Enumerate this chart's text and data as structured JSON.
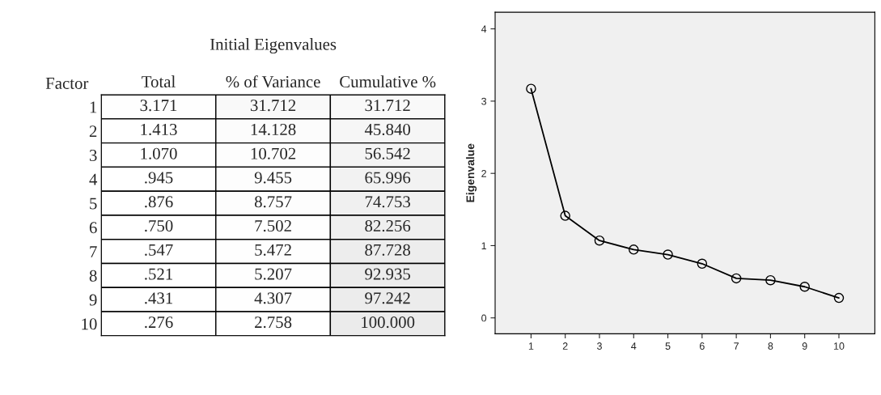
{
  "chart_data": [
    {
      "type": "heatmap",
      "title": "Initial Eigenvalues",
      "ylabel": "Factor",
      "categories": [
        "Total",
        "% of Variance",
        "Cumulative %"
      ],
      "y_categories": [
        "1",
        "2",
        "3",
        "4",
        "5",
        "6",
        "7",
        "8",
        "9",
        "10"
      ],
      "cells": [
        [
          3.171,
          31.712,
          31.712
        ],
        [
          1.413,
          14.128,
          45.84
        ],
        [
          1.07,
          10.702,
          56.542
        ],
        [
          0.945,
          9.455,
          65.996
        ],
        [
          0.876,
          8.757,
          74.753
        ],
        [
          0.75,
          7.502,
          82.256
        ],
        [
          0.547,
          5.472,
          87.728
        ],
        [
          0.521,
          5.207,
          92.935
        ],
        [
          0.431,
          4.307,
          97.242
        ],
        [
          0.276,
          2.758,
          100.0
        ]
      ],
      "cell_labels": [
        [
          "3.171",
          "31.712",
          "31.712"
        ],
        [
          "1.413",
          "14.128",
          "45.840"
        ],
        [
          "1.070",
          "10.702",
          "56.542"
        ],
        [
          ".945",
          "9.455",
          "65.996"
        ],
        [
          ".876",
          "8.757",
          "74.753"
        ],
        [
          ".750",
          "7.502",
          "82.256"
        ],
        [
          ".547",
          "5.472",
          "87.728"
        ],
        [
          ".521",
          "5.207",
          "92.935"
        ],
        [
          ".431",
          "4.307",
          "97.242"
        ],
        [
          ".276",
          "2.758",
          "100.000"
        ]
      ]
    },
    {
      "type": "line",
      "ylabel": "Eigenvalue",
      "x": [
        1,
        2,
        3,
        4,
        5,
        6,
        7,
        8,
        9,
        10
      ],
      "series": [
        {
          "color": "#000000",
          "values": [
            3.171,
            1.413,
            1.07,
            0.945,
            0.876,
            0.75,
            0.547,
            0.521,
            0.431,
            0.276
          ]
        }
      ],
      "xlim": [
        -0.05,
        11.05
      ],
      "xticks": [
        1,
        2,
        3,
        4,
        5,
        6,
        7,
        8,
        9,
        10
      ],
      "ylim": [
        -0.22,
        4.23
      ],
      "yticks": [
        0,
        1,
        2,
        3,
        4
      ],
      "marker": "circle",
      "grid": false,
      "legend": false
    }
  ]
}
